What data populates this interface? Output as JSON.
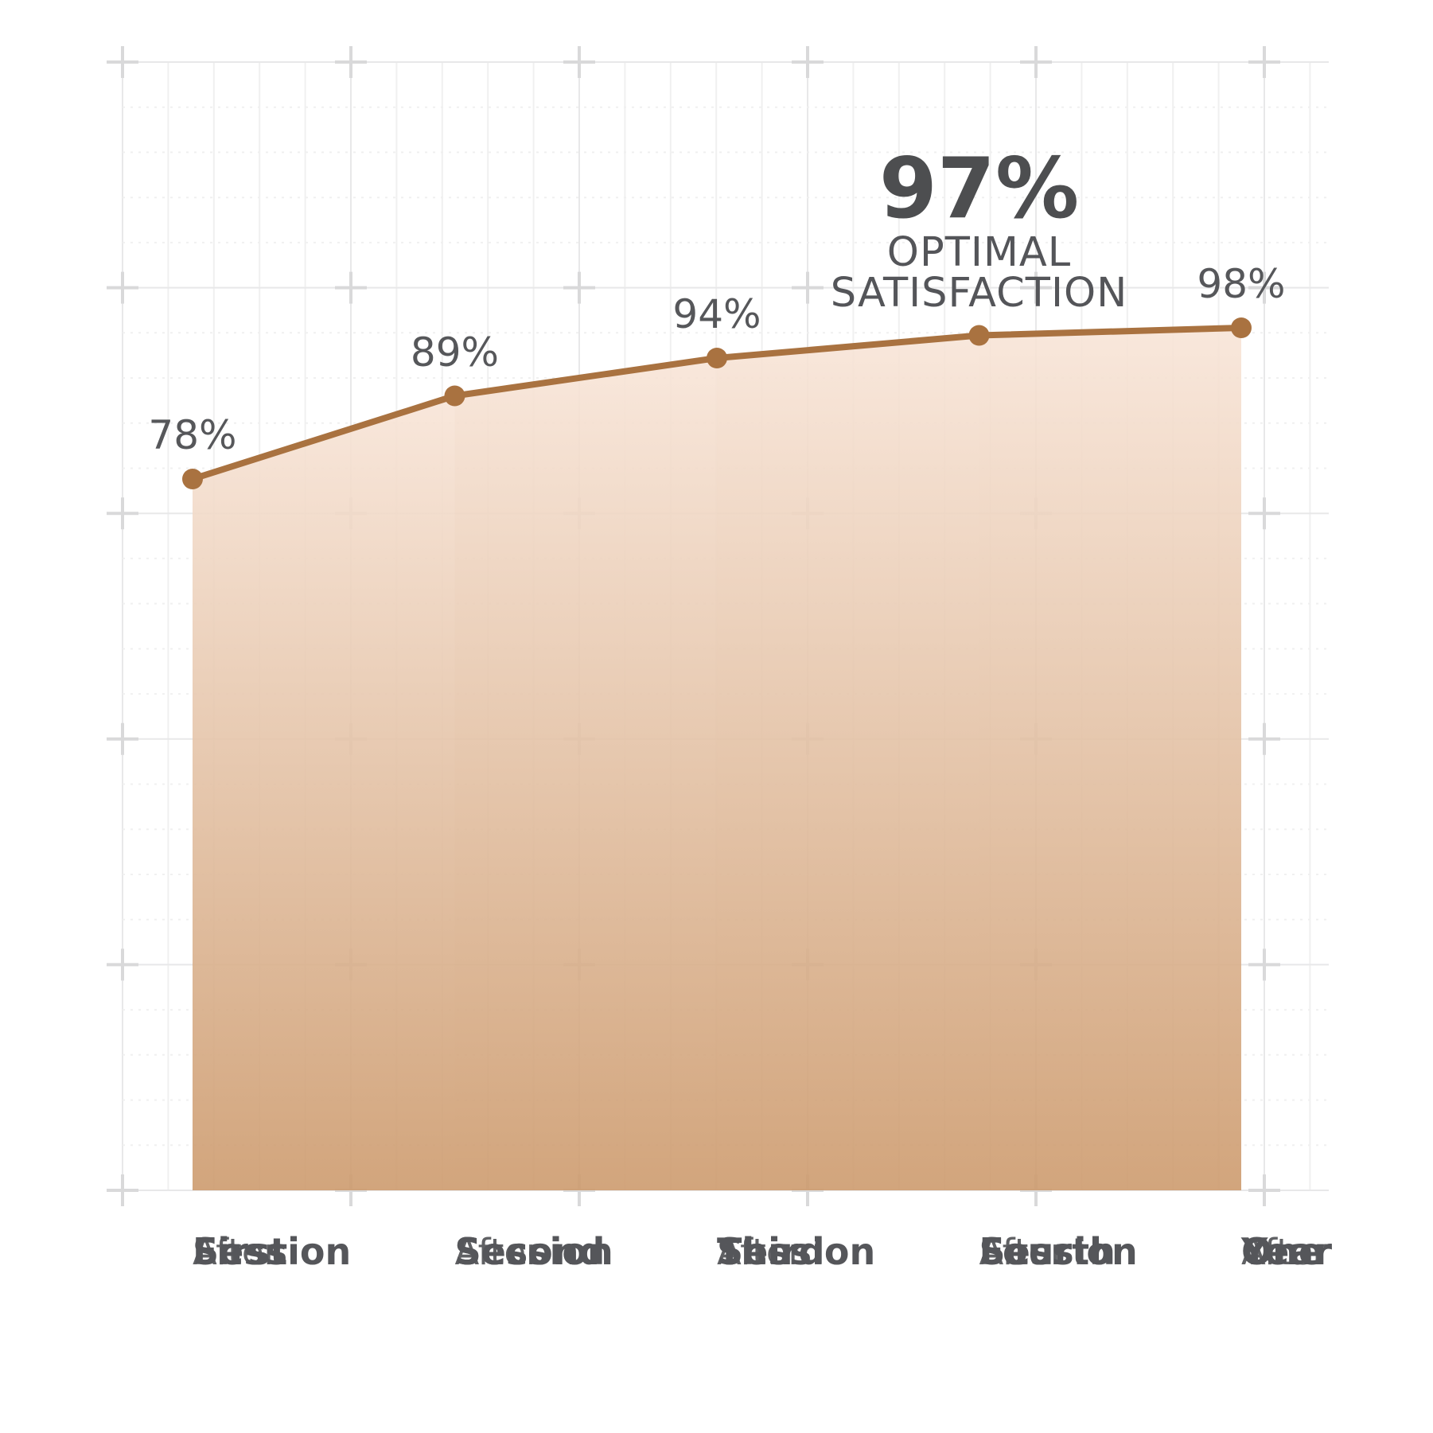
{
  "canvas": {
    "background": "#ffffff"
  },
  "chart_data": {
    "type": "area",
    "title": "",
    "categories": [
      "After First Session",
      "After Second Session",
      "After Third Session",
      "After Fourth Session",
      "After One Year"
    ],
    "categories_lines": [
      [
        "After",
        "First",
        "Session"
      ],
      [
        "After",
        "Second",
        "Session"
      ],
      [
        "After",
        "Third",
        "Session"
      ],
      [
        "After",
        "Fourth",
        "Session"
      ],
      [
        "After",
        "One",
        "Year"
      ]
    ],
    "values": [
      78,
      89,
      94,
      97,
      98
    ],
    "unit": "%",
    "point_labels": [
      "78%",
      "89%",
      "94%",
      null,
      "98%"
    ],
    "annotation": {
      "value": "97%",
      "lines": [
        "OPTIMAL",
        "SATISFACTION"
      ],
      "point_index": 3
    },
    "ylim": [
      0,
      100
    ],
    "grid": true,
    "legend": false,
    "colors": {
      "line": "#a97240",
      "area_top": "#f8e5d8",
      "area_bottom": "#cd9b6e",
      "grid_minor": "#f0f0f0",
      "grid_major": "#e8e8e9",
      "grid_plus": "#d9d9da",
      "value_label": "#56575a",
      "annotation": "#4d4e50"
    }
  }
}
